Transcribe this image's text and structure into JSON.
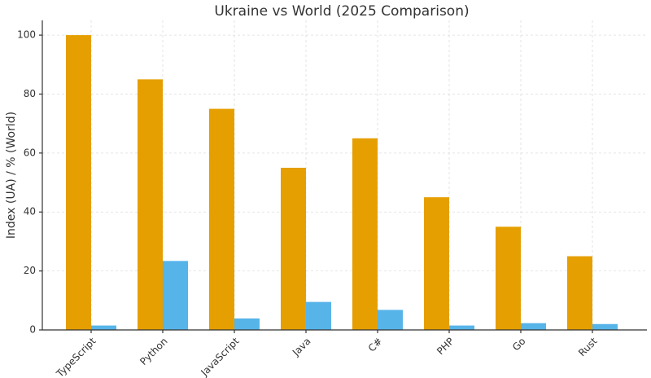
{
  "chart_data": {
    "type": "bar",
    "title": "Ukraine vs World (2025 Comparison)",
    "y_label": "Index (UA) / % (World)",
    "categories": [
      "TypeScript",
      "Python",
      "JavaScript",
      "Java",
      "C#",
      "PHP",
      "Go",
      "Rust"
    ],
    "series": [
      {
        "color": "#e69f00",
        "values": [
          100,
          85,
          75,
          55,
          65,
          45,
          35,
          25
        ]
      },
      {
        "color": "#56b4e9",
        "values": [
          1.5,
          23.4,
          3.9,
          9.5,
          6.8,
          1.5,
          2.3,
          2.0
        ]
      }
    ],
    "ylim": [
      0,
      105
    ],
    "yticks": [
      0,
      20,
      40,
      60,
      80,
      100
    ],
    "grid": true
  }
}
